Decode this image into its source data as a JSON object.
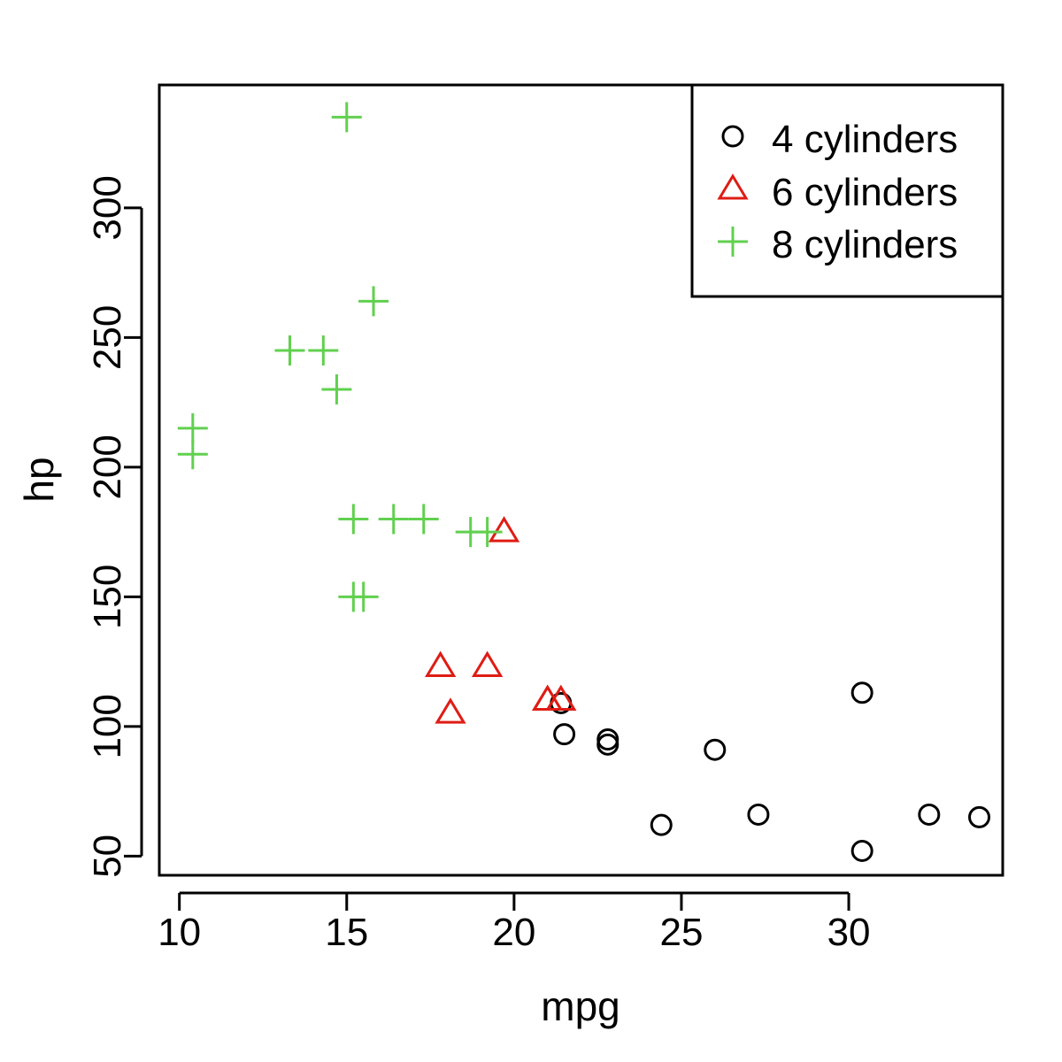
{
  "chart_data": {
    "type": "scatter",
    "xlabel": "mpg",
    "ylabel": "hp",
    "xlim": [
      9.4,
      34.6
    ],
    "ylim": [
      42.6,
      347.4
    ],
    "x_ticks": [
      "10",
      "15",
      "20",
      "25",
      "30"
    ],
    "x_tick_values": [
      10,
      15,
      20,
      25,
      30
    ],
    "y_ticks": [
      "50",
      "100",
      "150",
      "200",
      "250",
      "300"
    ],
    "y_tick_values": [
      50,
      100,
      150,
      200,
      250,
      300
    ],
    "grid": false,
    "legend_position": "top-right",
    "series": [
      {
        "name": "4 cylinders",
        "marker": "circle",
        "color": "#000000",
        "points": [
          [
            22.8,
            93
          ],
          [
            24.4,
            62
          ],
          [
            22.8,
            95
          ],
          [
            32.4,
            66
          ],
          [
            30.4,
            52
          ],
          [
            33.9,
            65
          ],
          [
            21.5,
            97
          ],
          [
            27.3,
            66
          ],
          [
            26.0,
            91
          ],
          [
            30.4,
            113
          ],
          [
            21.4,
            109
          ]
        ]
      },
      {
        "name": "6 cylinders",
        "marker": "triangle",
        "color": "#DF1C15",
        "points": [
          [
            21.0,
            110
          ],
          [
            21.0,
            110
          ],
          [
            21.4,
            110
          ],
          [
            18.1,
            105
          ],
          [
            19.2,
            123
          ],
          [
            17.8,
            123
          ],
          [
            19.7,
            175
          ]
        ]
      },
      {
        "name": "8 cylinders",
        "marker": "plus",
        "color": "#61D04F",
        "points": [
          [
            18.7,
            175
          ],
          [
            14.3,
            245
          ],
          [
            16.4,
            180
          ],
          [
            17.3,
            180
          ],
          [
            15.2,
            180
          ],
          [
            10.4,
            205
          ],
          [
            10.4,
            215
          ],
          [
            14.7,
            230
          ],
          [
            15.5,
            150
          ],
          [
            15.2,
            150
          ],
          [
            13.3,
            245
          ],
          [
            19.2,
            175
          ],
          [
            15.8,
            264
          ],
          [
            15.0,
            335
          ]
        ]
      }
    ]
  }
}
